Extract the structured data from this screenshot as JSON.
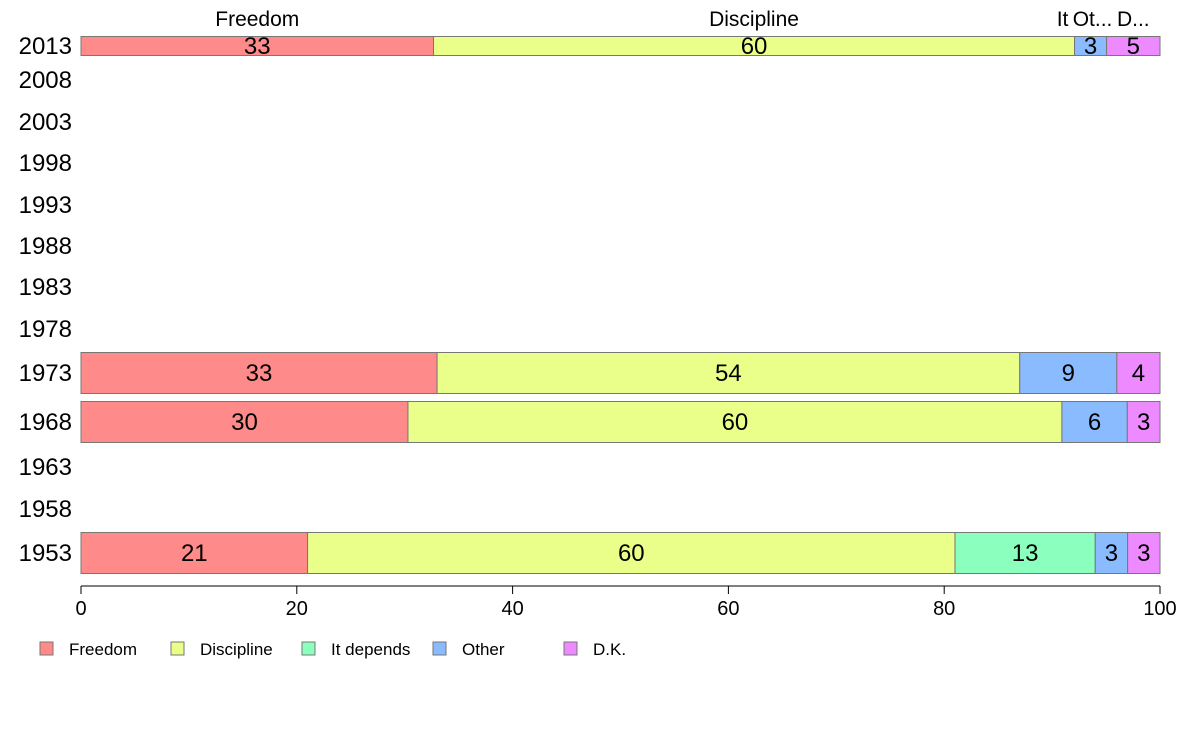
{
  "chart_data": {
    "type": "bar",
    "orientation": "horizontal",
    "stacked": true,
    "y_categories": [
      "2013",
      "2008",
      "2003",
      "1998",
      "1993",
      "1988",
      "1983",
      "1978",
      "1973",
      "1968",
      "1963",
      "1958",
      "1953"
    ],
    "series": [
      {
        "name": "Freedom",
        "color": "#ff8a8a",
        "values": [
          33,
          null,
          null,
          null,
          null,
          null,
          null,
          null,
          33,
          30,
          null,
          null,
          21
        ]
      },
      {
        "name": "Discipline",
        "color": "#eaff8a",
        "values": [
          60,
          null,
          null,
          null,
          null,
          null,
          null,
          null,
          54,
          60,
          null,
          null,
          60
        ]
      },
      {
        "name": "It depends",
        "color": "#8affbe",
        "values": [
          0,
          null,
          null,
          null,
          null,
          null,
          null,
          null,
          0,
          0,
          null,
          null,
          13
        ]
      },
      {
        "name": "Other",
        "color": "#8abbff",
        "values": [
          3,
          null,
          null,
          null,
          null,
          null,
          null,
          null,
          9,
          6,
          null,
          null,
          3
        ]
      },
      {
        "name": "D.K.",
        "color": "#ee8aff",
        "values": [
          5,
          null,
          null,
          null,
          null,
          null,
          null,
          null,
          4,
          3,
          null,
          null,
          3
        ]
      }
    ],
    "top_labels": [
      "Freedom",
      "Discipline",
      "It",
      "Ot...",
      "D..."
    ],
    "xlim": [
      0,
      100
    ],
    "x_ticks": [
      0,
      20,
      40,
      60,
      80,
      100
    ],
    "grid": false,
    "legend_position": "bottom",
    "legend": [
      "Freedom",
      "Discipline",
      "It depends",
      "Other",
      "D.K."
    ]
  }
}
